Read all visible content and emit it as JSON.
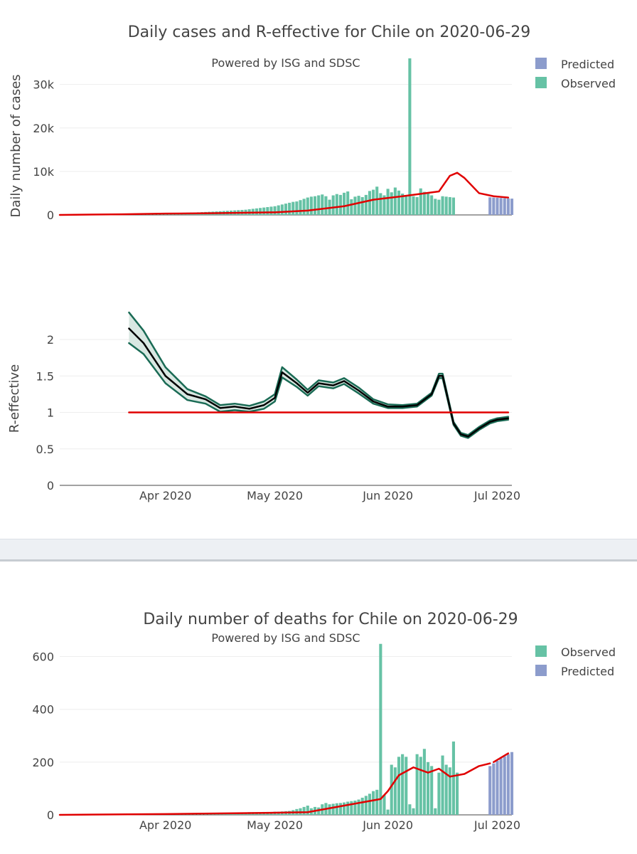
{
  "figure1": {
    "title": "Daily cases and R-effective for Chile on 2020-06-29",
    "subtitle": "Powered by ISG and SDSC",
    "legend": [
      {
        "label": "Predicted",
        "color": "#8c9ccc"
      },
      {
        "label": "Observed",
        "color": "#66c2a5"
      }
    ]
  },
  "figure2": {
    "title": "Daily number of deaths for Chile on 2020-06-29",
    "subtitle": "Powered by ISG and SDSC",
    "legend": [
      {
        "label": "Observed",
        "color": "#66c2a5"
      },
      {
        "label": "Predicted",
        "color": "#8c9ccc"
      }
    ]
  },
  "colors": {
    "observed": "#66c2a5",
    "predicted": "#8c9ccc",
    "trend": "#e00000",
    "band_edge": "#1a6b55",
    "band_fill": "#d9e8e2",
    "median": "#000000",
    "grid": "#eeeeee"
  },
  "chart_data": [
    {
      "type": "bar",
      "name": "cases",
      "ylabel": "Daily number of cases",
      "ylim": [
        0,
        36000
      ],
      "yticks": [
        0,
        10000,
        20000,
        30000
      ],
      "ytick_labels": [
        "0",
        "10k",
        "20k",
        "30k"
      ],
      "xlim": [
        "2020-03-03",
        "2020-07-05"
      ],
      "xticks": [
        "2020-04-01",
        "2020-05-01",
        "2020-06-01",
        "2020-07-01"
      ],
      "xtick_labels": [
        "Apr 2020",
        "May 2020",
        "Jun 2020",
        "Jul 2020"
      ],
      "show_xtick_labels": false,
      "observed": {
        "start": "2020-03-03",
        "values": [
          1,
          2,
          4,
          6,
          10,
          15,
          20,
          30,
          40,
          60,
          80,
          100,
          120,
          130,
          150,
          180,
          200,
          220,
          250,
          270,
          300,
          320,
          340,
          360,
          380,
          400,
          410,
          420,
          430,
          450,
          460,
          470,
          480,
          490,
          500,
          520,
          540,
          560,
          600,
          640,
          680,
          720,
          760,
          800,
          850,
          900,
          950,
          1000,
          1050,
          1100,
          1150,
          1200,
          1300,
          1400,
          1500,
          1600,
          1700,
          1800,
          1900,
          2000,
          2200,
          2400,
          2600,
          2800,
          3000,
          3100,
          3400,
          3700,
          4000,
          4200,
          4300,
          4500,
          4700,
          4300,
          3500,
          4500,
          4800,
          4600,
          5100,
          5400,
          3600,
          4200,
          4400,
          4100,
          4600,
          5500,
          5800,
          6500,
          5000,
          4500,
          6000,
          5200,
          6300,
          5600,
          4900,
          4500,
          36000,
          4300,
          4100,
          6100,
          5300,
          4900,
          4500,
          3700,
          3500,
          4300,
          4200,
          4100,
          4000
        ]
      },
      "predicted": {
        "start": "2020-06-29",
        "values": [
          4050,
          4000,
          3950,
          3900,
          3850,
          3800,
          3750
        ]
      },
      "trend": {
        "x": [
          "2020-03-03",
          "2020-03-20",
          "2020-04-01",
          "2020-04-15",
          "2020-05-01",
          "2020-05-10",
          "2020-05-20",
          "2020-05-28",
          "2020-06-05",
          "2020-06-15",
          "2020-06-18",
          "2020-06-20",
          "2020-06-22",
          "2020-06-26",
          "2020-06-30",
          "2020-07-04"
        ],
        "y": [
          0,
          150,
          300,
          400,
          600,
          1000,
          2000,
          3500,
          4300,
          5400,
          9000,
          9700,
          8500,
          5000,
          4300,
          4000
        ]
      }
    },
    {
      "type": "line",
      "name": "r-effective",
      "ylabel": "R-effective",
      "ylim": [
        0,
        2.4
      ],
      "yticks": [
        0,
        0.5,
        1,
        1.5,
        2
      ],
      "ytick_labels": [
        "0",
        "0.5",
        "1",
        "1.5",
        "2"
      ],
      "xlim": [
        "2020-03-03",
        "2020-07-05"
      ],
      "xticks": [
        "2020-04-01",
        "2020-05-01",
        "2020-06-01",
        "2020-07-01"
      ],
      "xtick_labels": [
        "Apr 2020",
        "May 2020",
        "Jun 2020",
        "Jul 2020"
      ],
      "reference": {
        "x": [
          "2020-03-22",
          "2020-07-04"
        ],
        "y": 1
      },
      "median": {
        "x": [
          "2020-03-22",
          "2020-03-26",
          "2020-04-01",
          "2020-04-07",
          "2020-04-12",
          "2020-04-16",
          "2020-04-20",
          "2020-04-24",
          "2020-04-28",
          "2020-05-01",
          "2020-05-03",
          "2020-05-07",
          "2020-05-10",
          "2020-05-13",
          "2020-05-17",
          "2020-05-20",
          "2020-05-24",
          "2020-05-28",
          "2020-06-01",
          "2020-06-05",
          "2020-06-09",
          "2020-06-13",
          "2020-06-15",
          "2020-06-16",
          "2020-06-19",
          "2020-06-21",
          "2020-06-23",
          "2020-06-26",
          "2020-06-29",
          "2020-07-01",
          "2020-07-04"
        ],
        "y": [
          2.15,
          1.95,
          1.5,
          1.25,
          1.18,
          1.06,
          1.08,
          1.05,
          1.1,
          1.2,
          1.55,
          1.4,
          1.27,
          1.4,
          1.37,
          1.43,
          1.3,
          1.15,
          1.08,
          1.08,
          1.1,
          1.25,
          1.5,
          1.5,
          0.85,
          0.7,
          0.67,
          0.78,
          0.87,
          0.9,
          0.92
        ]
      },
      "upper": {
        "x": [
          "2020-03-22",
          "2020-03-26",
          "2020-04-01",
          "2020-04-07",
          "2020-04-12",
          "2020-04-16",
          "2020-04-20",
          "2020-04-24",
          "2020-04-28",
          "2020-05-01",
          "2020-05-03",
          "2020-05-07",
          "2020-05-10",
          "2020-05-13",
          "2020-05-17",
          "2020-05-20",
          "2020-05-24",
          "2020-05-28",
          "2020-06-01",
          "2020-06-05",
          "2020-06-09",
          "2020-06-13",
          "2020-06-15",
          "2020-06-16",
          "2020-06-19",
          "2020-06-21",
          "2020-06-23",
          "2020-06-26",
          "2020-06-29",
          "2020-07-01",
          "2020-07-04"
        ],
        "y": [
          2.37,
          2.12,
          1.62,
          1.32,
          1.22,
          1.1,
          1.12,
          1.09,
          1.15,
          1.25,
          1.62,
          1.45,
          1.31,
          1.44,
          1.41,
          1.47,
          1.34,
          1.18,
          1.11,
          1.1,
          1.12,
          1.27,
          1.53,
          1.53,
          0.87,
          0.72,
          0.69,
          0.8,
          0.89,
          0.92,
          0.94
        ]
      },
      "lower": {
        "x": [
          "2020-03-22",
          "2020-03-26",
          "2020-04-01",
          "2020-04-07",
          "2020-04-12",
          "2020-04-16",
          "2020-04-20",
          "2020-04-24",
          "2020-04-28",
          "2020-05-01",
          "2020-05-03",
          "2020-05-07",
          "2020-05-10",
          "2020-05-13",
          "2020-05-17",
          "2020-05-20",
          "2020-05-24",
          "2020-05-28",
          "2020-06-01",
          "2020-06-05",
          "2020-06-09",
          "2020-06-13",
          "2020-06-15",
          "2020-06-16",
          "2020-06-19",
          "2020-06-21",
          "2020-06-23",
          "2020-06-26",
          "2020-06-29",
          "2020-07-01",
          "2020-07-04"
        ],
        "y": [
          1.95,
          1.8,
          1.4,
          1.17,
          1.12,
          1.01,
          1.03,
          1.01,
          1.05,
          1.15,
          1.48,
          1.35,
          1.23,
          1.36,
          1.33,
          1.39,
          1.26,
          1.12,
          1.06,
          1.06,
          1.08,
          1.23,
          1.47,
          1.47,
          0.83,
          0.68,
          0.65,
          0.76,
          0.85,
          0.88,
          0.9
        ]
      }
    },
    {
      "type": "bar",
      "name": "deaths",
      "ylim": [
        0,
        650
      ],
      "yticks": [
        0,
        200,
        400,
        600
      ],
      "ytick_labels": [
        "0",
        "200",
        "400",
        "600"
      ],
      "xlim": [
        "2020-03-03",
        "2020-07-05"
      ],
      "xticks": [
        "2020-04-01",
        "2020-05-01",
        "2020-06-01",
        "2020-07-01"
      ],
      "xtick_labels": [
        "Apr 2020",
        "May 2020",
        "Jun 2020",
        "Jul 2020"
      ],
      "observed": {
        "start": "2020-03-03",
        "values": [
          0,
          0,
          0,
          0,
          0,
          0,
          0,
          0,
          0,
          0,
          0,
          0,
          0,
          0,
          0,
          0,
          0,
          1,
          1,
          1,
          1,
          2,
          2,
          2,
          2,
          3,
          3,
          3,
          3,
          4,
          4,
          4,
          5,
          5,
          5,
          5,
          6,
          6,
          6,
          6,
          7,
          7,
          7,
          7,
          8,
          8,
          8,
          8,
          9,
          9,
          9,
          9,
          10,
          10,
          10,
          10,
          11,
          11,
          11,
          12,
          12,
          13,
          14,
          15,
          18,
          22,
          25,
          30,
          35,
          25,
          30,
          28,
          40,
          45,
          40,
          42,
          44,
          45,
          47,
          50,
          52,
          54,
          58,
          65,
          72,
          80,
          90,
          95,
          648,
          75,
          20,
          190,
          180,
          220,
          230,
          220,
          40,
          25,
          230,
          220,
          250,
          200,
          185,
          25,
          160,
          225,
          190,
          180,
          278,
          160
        ]
      },
      "predicted": {
        "start": "2020-06-29",
        "values": [
          185,
          195,
          205,
          215,
          222,
          230,
          238
        ]
      },
      "trend": {
        "x": [
          "2020-03-03",
          "2020-04-01",
          "2020-05-01",
          "2020-05-10",
          "2020-05-20",
          "2020-05-30",
          "2020-06-01",
          "2020-06-04",
          "2020-06-08",
          "2020-06-12",
          "2020-06-15",
          "2020-06-18",
          "2020-06-22",
          "2020-06-26",
          "2020-06-29"
        ],
        "y": [
          0,
          3,
          8,
          10,
          35,
          60,
          90,
          150,
          180,
          160,
          175,
          145,
          155,
          185,
          195
        ]
      },
      "trend_predicted": {
        "x": [
          "2020-06-30",
          "2020-07-04"
        ],
        "y": [
          200,
          233
        ]
      }
    }
  ]
}
